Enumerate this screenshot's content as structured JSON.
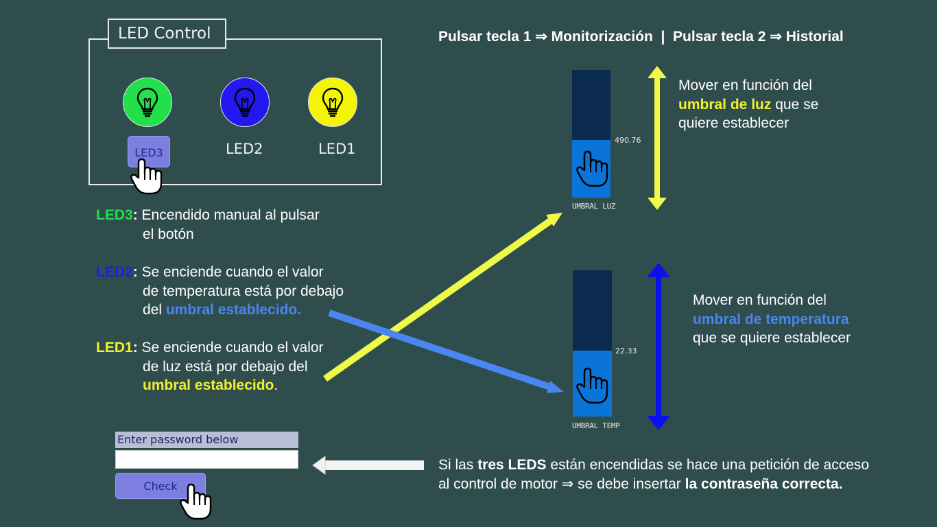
{
  "led_control": {
    "title": "LED Control",
    "leds": [
      {
        "label": "LED3",
        "color": "#22e04a"
      },
      {
        "label": "LED2",
        "color": "#2418f0"
      },
      {
        "label": "LED1",
        "color": "#f4f407"
      }
    ]
  },
  "header_instruction": "Pulsar tecla 1 ⇒ Monitorización  |  Pulsar tecla 2 ⇒ Historial",
  "descriptions": {
    "led3": {
      "name": "LED3",
      "colon": ":",
      "line1": " Encendido manual al pulsar",
      "line2": "el botón"
    },
    "led2": {
      "name": "LED2",
      "colon": ":",
      "line1": " Se enciende cuando el valor",
      "line2": "de temperatura está por debajo",
      "line3_prefix": "del ",
      "line3_highlight": "umbral establecido."
    },
    "led1": {
      "name": "LED1",
      "colon": ":",
      "line1": " Se enciende cuando el valor",
      "line2": "de luz está por debajo del",
      "line3_highlight": "umbral establecido",
      "line3_suffix": "."
    }
  },
  "light_slider": {
    "value_text": "490.76",
    "fill_fraction": 0.45,
    "caption": "UMBRAL LUZ",
    "note_line1": "Mover en función del",
    "note_highlight": "umbral de luz",
    "note_rest": " que se",
    "note_line3": "quiere establecer"
  },
  "temp_slider": {
    "value_text": "22.33",
    "fill_fraction": 0.45,
    "caption": "UMBRAL TEMP",
    "note_line1": "Mover en función del",
    "note_highlight": "umbral de temperatura",
    "note_line3": "que se quiere establecer"
  },
  "password": {
    "label": "Enter password below",
    "value": "",
    "button_label": "Check"
  },
  "access_note": {
    "line1_prefix": "Si las ",
    "line1_bold": "tres LEDS",
    "line1_suffix": " están encendidas se hace una petición de acceso",
    "line2_prefix": "al control de motor ⇒ se debe insertar ",
    "line2_bold": "la contraseña correcta."
  },
  "colors": {
    "background": "#2f4d4c",
    "yellow_arrow": "#eef94a",
    "blue_arrow": "#4a86f0",
    "temp_double_arrow": "#0a10f0",
    "button_fill": "#7c7fe0"
  },
  "icons": [
    "bulb-icon",
    "hand-pointer-icon",
    "double-arrow-icon",
    "left-arrow-icon"
  ]
}
